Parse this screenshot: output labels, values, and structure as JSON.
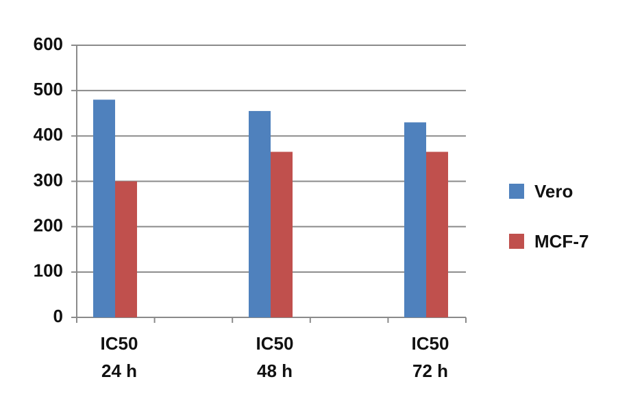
{
  "chart_data": {
    "type": "bar",
    "categories": [
      [
        "IC50",
        "24 h"
      ],
      [
        "IC50",
        "48 h"
      ],
      [
        "IC50",
        "72 h"
      ]
    ],
    "series": [
      {
        "name": "Vero",
        "color": "#4f81bd",
        "values": [
          480,
          455,
          430
        ]
      },
      {
        "name": "MCF-7",
        "color": "#c0504d",
        "values": [
          300,
          365,
          365
        ]
      }
    ],
    "ylim": [
      0,
      600
    ],
    "yticks": [
      0,
      100,
      200,
      300,
      400,
      500,
      600
    ],
    "grid": true,
    "legend": "right"
  }
}
